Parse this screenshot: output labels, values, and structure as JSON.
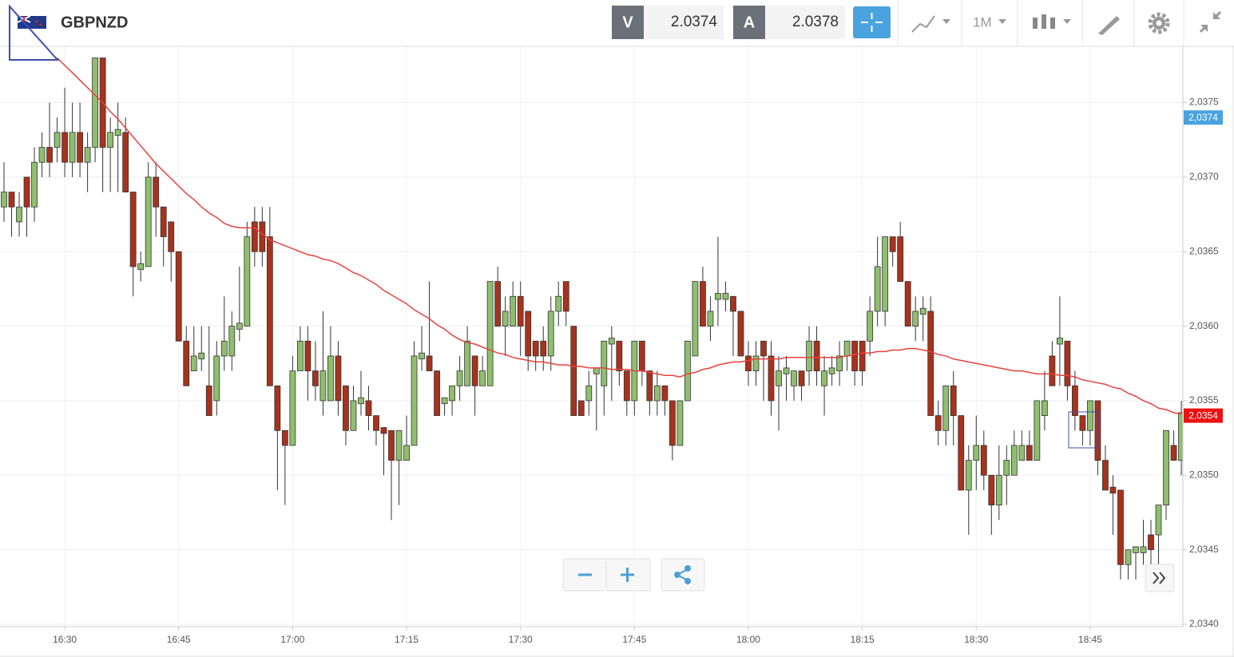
{
  "toolbar": {
    "symbol": "GBPNZD",
    "sell_label": "V",
    "sell": 2.0374,
    "buy_label": "A",
    "buy": 2.0378,
    "timeframe": "1M"
  },
  "chart_data": {
    "type": "candlestick",
    "up_color": "#8fbf6e",
    "down_color": "#a8321c",
    "categories": [
      null,
      null,
      null,
      null,
      null,
      null,
      null,
      null,
      "16:30",
      null,
      null,
      null,
      null,
      null,
      null,
      null,
      null,
      null,
      null,
      null,
      null,
      null,
      null,
      "16:45",
      null,
      null,
      null,
      null,
      null,
      null,
      null,
      null,
      null,
      null,
      null,
      null,
      null,
      null,
      "17:00",
      null,
      null,
      null,
      null,
      null,
      null,
      null,
      null,
      null,
      null,
      null,
      null,
      null,
      null,
      "17:15",
      null,
      null,
      null,
      null,
      null,
      null,
      null,
      null,
      null,
      null,
      null,
      null,
      null,
      null,
      "17:30",
      null,
      null,
      null,
      null,
      null,
      null,
      null,
      null,
      null,
      null,
      null,
      null,
      null,
      null,
      "17:45",
      null,
      null,
      null,
      null,
      null,
      null,
      null,
      null,
      null,
      null,
      null,
      null,
      null,
      null,
      "18:00",
      null,
      null,
      null,
      null,
      null,
      null,
      null,
      null,
      null,
      null,
      null,
      null,
      null,
      null,
      "18:15",
      null,
      null,
      null,
      null,
      null,
      null,
      null,
      null,
      null,
      null,
      null,
      null,
      null,
      null,
      "18:30",
      null,
      null,
      null,
      null,
      null,
      null,
      null,
      null,
      null,
      null,
      null,
      null,
      null,
      null,
      "18:45",
      null,
      null,
      null,
      null,
      null,
      null,
      null,
      null,
      null,
      null,
      null,
      null
    ],
    "open": [
      2.0368,
      2.0369,
      2.0367,
      2.037,
      2.0368,
      2.0371,
      2.0372,
      2.0372,
      2.0373,
      2.0371,
      2.0373,
      2.0371,
      2.0372,
      2.0378,
      2.0372,
      2.03728,
      2.0373,
      2.0369,
      2.03638,
      2.0364,
      2.037,
      2.0368,
      2.0367,
      2.0365,
      2.0359,
      2.0357,
      2.03578,
      2.0356,
      2.0355,
      2.0358,
      2.0358,
      2.03598,
      2.036,
      2.0367,
      2.0367,
      2.0366,
      2.0356,
      2.0353,
      2.0352,
      2.0357,
      2.0359,
      2.0357,
      2.0355,
      2.0355,
      2.0358,
      2.0356,
      2.0353,
      2.03548,
      2.0355,
      2.0354,
      2.03532,
      2.0353,
      2.0351,
      2.0351,
      2.0352,
      2.03578,
      2.0358,
      2.0357,
      2.03548,
      2.0355,
      2.0356,
      2.0356,
      2.0358,
      2.0356,
      2.0356,
      2.0363,
      2.036,
      2.036,
      2.0362,
      2.0361,
      2.0359,
      2.0359,
      2.0358,
      2.0361,
      2.0363,
      2.036,
      2.0355,
      2.0355,
      2.03568,
      2.0356,
      2.03588,
      2.0359,
      2.0357,
      2.0355,
      2.0359,
      2.0357,
      2.0355,
      2.0356,
      2.0355,
      2.0352,
      2.0355,
      2.0358,
      2.0363,
      2.036,
      2.03618,
      2.03618,
      2.0362,
      2.0361,
      2.0358,
      2.0357,
      2.0359,
      2.0358,
      2.0356,
      2.03568,
      2.0356,
      2.0357,
      2.0357,
      2.0359,
      2.0356,
      2.03568,
      2.0357,
      2.0358,
      2.0359,
      2.0359,
      2.0359,
      2.0361,
      2.0361,
      2.0366,
      2.0366,
      2.0363,
      2.036,
      2.03608,
      2.0361,
      2.0354,
      2.0353,
      2.0356,
      2.0354,
      2.0349,
      2.0351,
      2.0352,
      2.035,
      2.0348,
      2.035,
      2.035,
      2.0351,
      2.0352,
      2.0351,
      2.0354,
      2.0358,
      2.03588,
      2.0359,
      2.0356,
      2.0354,
      2.0353,
      2.0355,
      2.0351,
      2.03492,
      2.0349,
      2.0344,
      2.03448,
      2.03448,
      2.0346,
      2.0346,
      2.0348,
      2.0352,
      2.0351
    ],
    "high": [
      2.0371,
      2.0369,
      2.0369,
      2.037,
      2.0372,
      2.0373,
      2.0375,
      2.0374,
      2.0376,
      2.0375,
      2.0375,
      2.0373,
      2.0378,
      2.0378,
      2.0374,
      2.0375,
      2.0374,
      2.0369,
      2.0365,
      2.0371,
      2.0371,
      2.0368,
      2.0367,
      2.0365,
      2.036,
      2.036,
      2.036,
      2.036,
      2.0359,
      2.0362,
      2.0361,
      2.0364,
      2.0367,
      2.0368,
      2.0368,
      2.0368,
      2.0356,
      2.0353,
      2.0358,
      2.036,
      2.036,
      2.0359,
      2.0361,
      2.036,
      2.0359,
      2.0356,
      2.0356,
      2.0357,
      2.0356,
      2.0354,
      2.0353,
      2.0353,
      2.0353,
      2.0354,
      2.0359,
      2.036,
      2.0363,
      2.0357,
      2.0355,
      2.0356,
      2.0358,
      2.036,
      2.0358,
      2.0358,
      2.0363,
      2.0364,
      2.0362,
      2.0363,
      2.0363,
      2.0361,
      2.0359,
      2.036,
      2.0362,
      2.0363,
      2.0363,
      2.036,
      2.0355,
      2.0357,
      2.0357,
      2.0359,
      2.036,
      2.0359,
      2.0357,
      2.0359,
      2.0359,
      2.0357,
      2.0357,
      2.0356,
      2.0355,
      2.0355,
      2.0359,
      2.0363,
      2.0364,
      2.0362,
      2.0366,
      2.0363,
      2.0362,
      2.0361,
      2.0359,
      2.0359,
      2.0359,
      2.0359,
      2.0358,
      2.0358,
      2.0357,
      2.0357,
      2.036,
      2.036,
      2.0358,
      2.0358,
      2.0359,
      2.0359,
      2.0359,
      2.0359,
      2.0362,
      2.0366,
      2.0366,
      2.0366,
      2.0367,
      2.0363,
      2.0362,
      2.0362,
      2.0362,
      2.0355,
      2.0356,
      2.0357,
      2.0354,
      2.0352,
      2.0354,
      2.0353,
      2.035,
      2.0352,
      2.0352,
      2.0353,
      2.0353,
      2.0353,
      2.0355,
      2.0357,
      2.0359,
      2.0362,
      2.0359,
      2.0357,
      2.0354,
      2.0355,
      2.0355,
      2.0352,
      2.035,
      2.0349,
      2.0345,
      2.0345,
      2.0347,
      2.0347,
      2.0348,
      2.0353,
      2.0353,
      2.0355
    ],
    "low": [
      2.0367,
      2.0366,
      2.0366,
      2.0366,
      2.0367,
      2.037,
      2.037,
      2.0371,
      2.037,
      2.037,
      2.037,
      2.0369,
      2.0371,
      2.0369,
      2.0369,
      2.0369,
      2.0369,
      2.0362,
      2.0363,
      2.0364,
      2.0366,
      2.0364,
      2.0363,
      2.0359,
      2.0356,
      2.0357,
      2.0357,
      2.0354,
      2.0354,
      2.0357,
      2.0357,
      2.0359,
      2.036,
      2.0364,
      2.0364,
      2.0356,
      2.0349,
      2.0348,
      2.0352,
      2.0357,
      2.0355,
      2.0355,
      2.0354,
      2.0355,
      2.0354,
      2.0352,
      2.0353,
      2.0354,
      2.0353,
      2.0352,
      2.035,
      2.0347,
      2.0348,
      2.0351,
      2.0352,
      2.0357,
      2.0357,
      2.0354,
      2.0354,
      2.0354,
      2.0355,
      2.0356,
      2.0354,
      2.0356,
      2.0356,
      2.036,
      2.0358,
      2.036,
      2.0358,
      2.0357,
      2.0357,
      2.0357,
      2.0357,
      2.036,
      2.036,
      2.0354,
      2.0354,
      2.0354,
      2.0353,
      2.0354,
      2.0355,
      2.0356,
      2.0354,
      2.0354,
      2.0356,
      2.0354,
      2.0354,
      2.0354,
      2.0351,
      2.0352,
      2.0355,
      2.0358,
      2.036,
      2.0359,
      2.036,
      2.0361,
      2.0358,
      2.0358,
      2.0356,
      2.0356,
      2.0355,
      2.0354,
      2.0353,
      2.0355,
      2.0355,
      2.0355,
      2.0356,
      2.0356,
      2.0354,
      2.0356,
      2.0356,
      2.0357,
      2.0356,
      2.0356,
      2.0358,
      2.036,
      2.036,
      2.0364,
      2.0363,
      2.036,
      2.0359,
      2.0359,
      2.0354,
      2.0352,
      2.0352,
      2.0352,
      2.0349,
      2.0346,
      2.0349,
      2.0349,
      2.0346,
      2.0347,
      2.0348,
      2.035,
      2.0351,
      2.0351,
      2.0351,
      2.0353,
      2.0356,
      2.0356,
      2.0355,
      2.0353,
      2.0352,
      2.0352,
      2.035,
      2.0349,
      2.0346,
      2.0343,
      2.0343,
      2.0343,
      2.0344,
      2.0344,
      2.0344,
      2.0347,
      2.0351,
      2.035
    ],
    "close": [
      2.0369,
      2.0368,
      2.0368,
      2.0368,
      2.0371,
      2.0372,
      2.0371,
      2.0373,
      2.0371,
      2.0373,
      2.0371,
      2.0372,
      2.0378,
      2.0372,
      2.0373,
      2.03732,
      2.0369,
      2.0364,
      2.03642,
      2.037,
      2.0368,
      2.0366,
      2.0365,
      2.0359,
      2.0356,
      2.0358,
      2.03582,
      2.0354,
      2.0358,
      2.0359,
      2.036,
      2.03602,
      2.0366,
      2.0365,
      2.0365,
      2.0356,
      2.0353,
      2.0352,
      2.0357,
      2.0359,
      2.0357,
      2.0356,
      2.0357,
      2.0358,
      2.0355,
      2.0353,
      2.0355,
      2.03552,
      2.0354,
      2.0353,
      2.03528,
      2.0351,
      2.0353,
      2.0352,
      2.0358,
      2.03582,
      2.0357,
      2.0354,
      2.03552,
      2.0356,
      2.0357,
      2.0359,
      2.0356,
      2.0357,
      2.0363,
      2.036,
      2.0361,
      2.0362,
      2.036,
      2.0358,
      2.0358,
      2.0358,
      2.0361,
      2.0362,
      2.0361,
      2.0354,
      2.0354,
      2.0356,
      2.03572,
      2.0359,
      2.03592,
      2.0357,
      2.0355,
      2.0359,
      2.0357,
      2.0355,
      2.0356,
      2.0355,
      2.0352,
      2.0355,
      2.0359,
      2.0363,
      2.036,
      2.0361,
      2.03622,
      2.03622,
      2.0361,
      2.0358,
      2.0357,
      2.0358,
      2.0358,
      2.0355,
      2.0357,
      2.03572,
      2.0357,
      2.0356,
      2.0359,
      2.0357,
      2.0357,
      2.03572,
      2.0358,
      2.0359,
      2.0357,
      2.0357,
      2.0361,
      2.0364,
      2.0366,
      2.0365,
      2.0363,
      2.036,
      2.0361,
      2.03612,
      2.0354,
      2.0353,
      2.0356,
      2.0354,
      2.0349,
      2.0351,
      2.0352,
      2.035,
      2.0348,
      2.035,
      2.0351,
      2.0352,
      2.0352,
      2.0351,
      2.0355,
      2.0355,
      2.0356,
      2.03592,
      2.0356,
      2.0354,
      2.0353,
      2.0355,
      2.0351,
      2.0349,
      2.03488,
      2.0344,
      2.0345,
      2.03452,
      2.03452,
      2.0345,
      2.0348,
      2.0353,
      2.0351,
      2.03542
    ],
    "ma": {
      "color": "#e8413c",
      "values": [
        null,
        null,
        null,
        null,
        null,
        null,
        null,
        2.0378,
        2.03775,
        2.0377,
        2.03765,
        2.0376,
        2.03755,
        2.0375,
        2.03744,
        2.03739,
        2.03733,
        2.03727,
        2.03721,
        2.03715,
        2.03709,
        2.03704,
        2.03699,
        2.03694,
        2.03689,
        2.03685,
        2.0368,
        2.03676,
        2.03673,
        2.03669,
        2.03667,
        2.03666,
        2.03666,
        2.03666,
        2.03662,
        2.03658,
        2.03656,
        2.03654,
        2.03652,
        2.0365,
        2.03648,
        2.03647,
        2.03645,
        2.03644,
        2.03642,
        2.03639,
        2.03636,
        2.03634,
        2.03631,
        2.03628,
        2.03624,
        2.03621,
        2.03618,
        2.03615,
        2.03611,
        2.03608,
        2.03605,
        2.03601,
        2.03598,
        2.03594,
        2.03591,
        2.03589,
        2.03588,
        2.03586,
        2.03584,
        2.03582,
        2.03581,
        2.03579,
        2.03578,
        2.03577,
        2.03576,
        2.03576,
        2.03575,
        2.03574,
        2.03574,
        2.03573,
        2.03573,
        2.03572,
        2.03572,
        2.03572,
        2.03571,
        2.03571,
        2.03571,
        2.0357,
        2.0357,
        2.03569,
        2.03568,
        2.03567,
        2.03567,
        2.03566,
        2.03568,
        2.03569,
        2.03571,
        2.03572,
        2.03574,
        2.03575,
        2.03576,
        2.03576,
        2.03577,
        2.03578,
        2.03578,
        2.03578,
        2.03578,
        2.03579,
        2.03579,
        2.03579,
        2.03579,
        2.03579,
        2.03579,
        2.03579,
        2.03579,
        2.0358,
        2.03581,
        2.03582,
        2.03582,
        2.03583,
        2.03583,
        2.03584,
        2.03584,
        2.03585,
        2.03585,
        2.03584,
        2.03583,
        2.03581,
        2.0358,
        2.03578,
        2.03577,
        2.03576,
        2.03575,
        2.03574,
        2.03573,
        2.03572,
        2.03571,
        2.0357,
        2.0357,
        2.03569,
        2.03568,
        2.03568,
        2.03568,
        2.03567,
        2.03567,
        2.03566,
        2.03564,
        2.03563,
        2.03562,
        2.03561,
        2.03559,
        2.03558,
        2.03555,
        2.03553,
        2.0355,
        2.03548,
        2.03545,
        2.03544,
        2.03542,
        2.03541
      ]
    },
    "ylim": [
      2.034,
      2.0379
    ],
    "yticks": [
      {
        "value": 2.034,
        "label": "2,0340"
      },
      {
        "value": 2.0345,
        "label": "2,0345"
      },
      {
        "value": 2.035,
        "label": "2,0350"
      },
      {
        "value": 2.0355,
        "label": "2,0355"
      },
      {
        "value": 2.036,
        "label": "2,0360"
      },
      {
        "value": 2.0365,
        "label": "2,0365"
      },
      {
        "value": 2.037,
        "label": "2,0370"
      },
      {
        "value": 2.0375,
        "label": "2,0375"
      }
    ],
    "grid": true,
    "price_markers": [
      {
        "value": 2.0374,
        "label": "2,0374",
        "color": "#4aa3df"
      },
      {
        "value": 2.0354,
        "label": "2,0354",
        "color": "#ee1111"
      }
    ]
  }
}
